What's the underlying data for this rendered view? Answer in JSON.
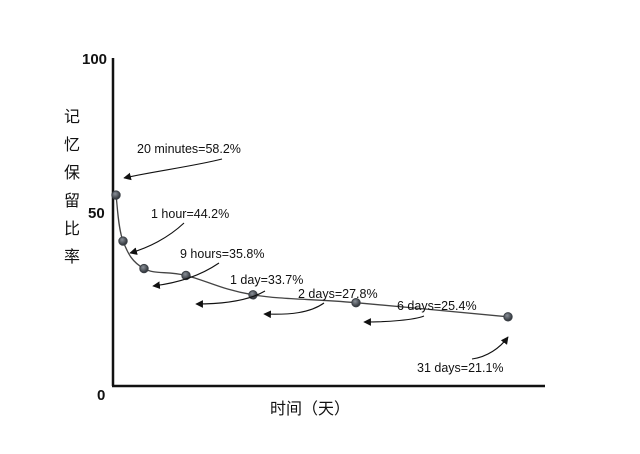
{
  "chart_data": {
    "type": "line",
    "xlabel": "时间（天）",
    "ylabel": "记忆保留比率",
    "ylim": [
      0,
      100
    ],
    "y_ticks": [
      "0",
      "50",
      "100"
    ],
    "grid": false,
    "series": [
      {
        "points": [
          {
            "x": 0.0139,
            "y": 58.2,
            "label": "20 minutes=58.2%"
          },
          {
            "x": 0.0417,
            "y": 44.2,
            "label": "1 hour=44.2%"
          },
          {
            "x": 0.375,
            "y": 35.8,
            "label": "9 hours=35.8%"
          },
          {
            "x": 1,
            "y": 33.7,
            "label": "1 day=33.7%"
          },
          {
            "x": 2,
            "y": 27.8,
            "label": "2 days=27.8%"
          },
          {
            "x": 6,
            "y": 25.4,
            "label": "6 days=25.4%"
          },
          {
            "x": 31,
            "y": 21.1,
            "label": "31 days=21.1%"
          }
        ]
      }
    ],
    "colors": {
      "line": "#444444",
      "marker": "#3a3f45",
      "text": "#111111"
    }
  }
}
